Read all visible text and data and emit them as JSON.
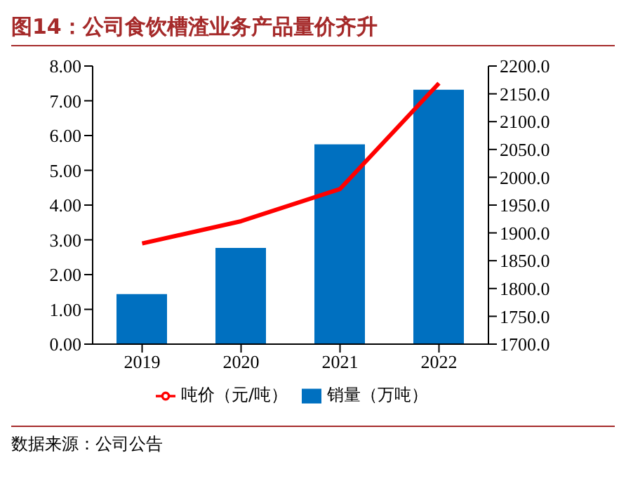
{
  "chart_data": {
    "type": "bar",
    "title": "图14：公司食饮槽渣业务产品量价齐升",
    "categories": [
      "2019",
      "2020",
      "2021",
      "2022"
    ],
    "series": [
      {
        "name": "销量（万吨）",
        "color": "#0070c0",
        "values": [
          1.44,
          2.77,
          5.75,
          7.32
        ]
      },
      {
        "name": "吨价（元/吨）",
        "type": "line",
        "axis": "y2",
        "color": "#ff0000",
        "values": [
          1881,
          1921,
          1979,
          2169
        ]
      }
    ],
    "ylim": [
      0,
      8
    ],
    "yticks": [
      {
        "value": 0,
        "label": "0.00"
      },
      {
        "value": 1,
        "label": "1.00"
      },
      {
        "value": 2,
        "label": "2.00"
      },
      {
        "value": 3,
        "label": "3.00"
      },
      {
        "value": 4,
        "label": "4.00"
      },
      {
        "value": 5,
        "label": "5.00"
      },
      {
        "value": 6,
        "label": "6.00"
      },
      {
        "value": 7,
        "label": "7.00"
      },
      {
        "value": 8,
        "label": "8.00"
      }
    ],
    "y2lim": [
      1700,
      2200
    ],
    "y2ticks": [
      {
        "value": 1700,
        "label": "1700.0"
      },
      {
        "value": 1750,
        "label": "1750.0"
      },
      {
        "value": 1800,
        "label": "1800.0"
      },
      {
        "value": 1850,
        "label": "1850.0"
      },
      {
        "value": 1900,
        "label": "1900.0"
      },
      {
        "value": 1950,
        "label": "1950.0"
      },
      {
        "value": 2000,
        "label": "2000.0"
      },
      {
        "value": 2050,
        "label": "2050.0"
      },
      {
        "value": 2100,
        "label": "2100.0"
      },
      {
        "value": 2150,
        "label": "2150.0"
      },
      {
        "value": 2200,
        "label": "2200.0"
      }
    ],
    "legend": "bottom",
    "grid": false,
    "marker": "none",
    "annotations": [
      "数据来源：公司公告"
    ]
  }
}
